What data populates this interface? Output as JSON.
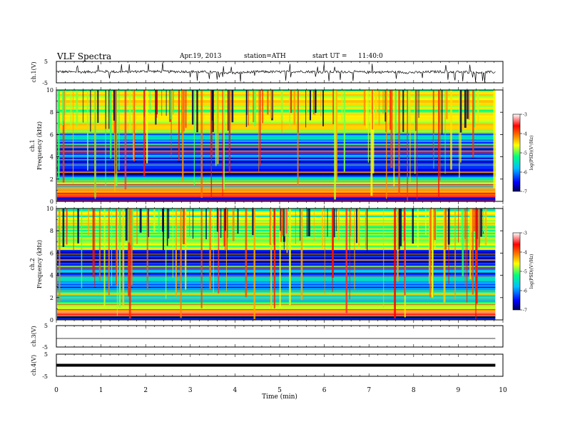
{
  "header": {
    "title": "VLF  Spectra",
    "date": "Apr.19, 2013",
    "station": "station=ATH",
    "start_label": "start  UT  =",
    "start_time": "11:40:0"
  },
  "x_axis": {
    "label": "Time  (min)",
    "ticks": [
      "0",
      "1",
      "2",
      "3",
      "4",
      "5",
      "6",
      "7",
      "8",
      "9",
      "10"
    ],
    "range": [
      0,
      10
    ],
    "data_end": 9.83
  },
  "colorbar": {
    "label": "log(PSD)(V²/Hz)",
    "ticks": [
      "-3",
      "-4",
      "-5",
      "-6",
      "-7"
    ]
  },
  "chart_data": [
    {
      "type": "line",
      "panel": "ch1",
      "ylabel": "ch.1(V)",
      "ylim": [
        -5,
        5
      ],
      "y_ticks": [
        "5",
        "-5"
      ],
      "x": [
        0,
        0.5,
        1,
        1.5,
        2,
        2.5,
        3,
        3.5,
        4,
        4.5,
        5,
        5.5,
        6,
        6.5,
        7,
        7.5,
        8,
        8.5,
        9,
        9.5,
        9.83
      ],
      "y": [
        0.2,
        0,
        0.3,
        0.1,
        0.4,
        0.2,
        0.3,
        -0.1,
        -0.4,
        0.2,
        0.1,
        0.3,
        0,
        0.2,
        -0.1,
        0.1,
        -0.2,
        0.2,
        0.1,
        -0.1,
        0
      ],
      "note": "noisy trace with spikes"
    },
    {
      "type": "heatmap",
      "panel": "ch1-spectrogram",
      "ylabel_top": "ch.1",
      "ylabel": "Frequency  (kHz)",
      "ylim": [
        0,
        10
      ],
      "y_ticks": [
        "10",
        "8",
        "6",
        "4",
        "2",
        "0"
      ],
      "x": [
        0,
        9.83
      ],
      "frequency_bands_khz": [
        {
          "f0": 0,
          "f1": 0.4,
          "psd": -6.5
        },
        {
          "f0": 0.4,
          "f1": 0.8,
          "psd": -3.6
        },
        {
          "f0": 0.8,
          "f1": 1.2,
          "psd": -4.3
        },
        {
          "f0": 1.2,
          "f1": 2.2,
          "psd": -5.3
        },
        {
          "f0": 2.2,
          "f1": 2.8,
          "psd": -6.5
        },
        {
          "f0": 2.8,
          "f1": 4.8,
          "psd": -6.2
        },
        {
          "f0": 4.8,
          "f1": 6.2,
          "psd": -5.9
        },
        {
          "f0": 6.2,
          "f1": 10,
          "psd": -4.8
        }
      ],
      "colorscale": {
        "min": -7,
        "max": -3
      }
    },
    {
      "type": "heatmap",
      "panel": "ch2-spectrogram",
      "ylabel_top": "ch.2",
      "ylabel": "Frequency  (kHz)",
      "ylim": [
        0,
        10
      ],
      "y_ticks": [
        "10",
        "8",
        "6",
        "4",
        "2",
        "0"
      ],
      "x": [
        0,
        9.83
      ],
      "frequency_bands_khz": [
        {
          "f0": 0,
          "f1": 0.4,
          "psd": -6.5
        },
        {
          "f0": 0.4,
          "f1": 0.8,
          "psd": -3.7
        },
        {
          "f0": 0.8,
          "f1": 1.4,
          "psd": -4.6
        },
        {
          "f0": 1.4,
          "f1": 2.6,
          "psd": -5.4
        },
        {
          "f0": 2.6,
          "f1": 5,
          "psd": -6.0
        },
        {
          "f0": 5,
          "f1": 6.3,
          "psd": -6.6
        },
        {
          "f0": 6.3,
          "f1": 10,
          "psd": -5.0
        }
      ],
      "colorscale": {
        "min": -7,
        "max": -3
      }
    },
    {
      "type": "line",
      "panel": "ch3",
      "ylabel": "ch.3(V)",
      "ylim": [
        -5,
        5
      ],
      "y_ticks": [
        "5",
        "-5"
      ],
      "x": [
        0,
        9.83
      ],
      "y": [
        -1,
        -1
      ]
    },
    {
      "type": "line",
      "panel": "ch4",
      "ylabel": "ch.4(V)",
      "ylim": [
        -5,
        5
      ],
      "y_ticks": [
        "5",
        "-5"
      ],
      "x": [
        0,
        9.83
      ],
      "y": [
        0,
        0
      ],
      "note": "thick flat band"
    }
  ],
  "colors": {
    "axes": "#000000",
    "trace": "#000000",
    "colormap": [
      "#000055",
      "#0000ff",
      "#00bfff",
      "#00ff7f",
      "#ffff00",
      "#ff7f00",
      "#ff0000",
      "#ffffff"
    ]
  }
}
